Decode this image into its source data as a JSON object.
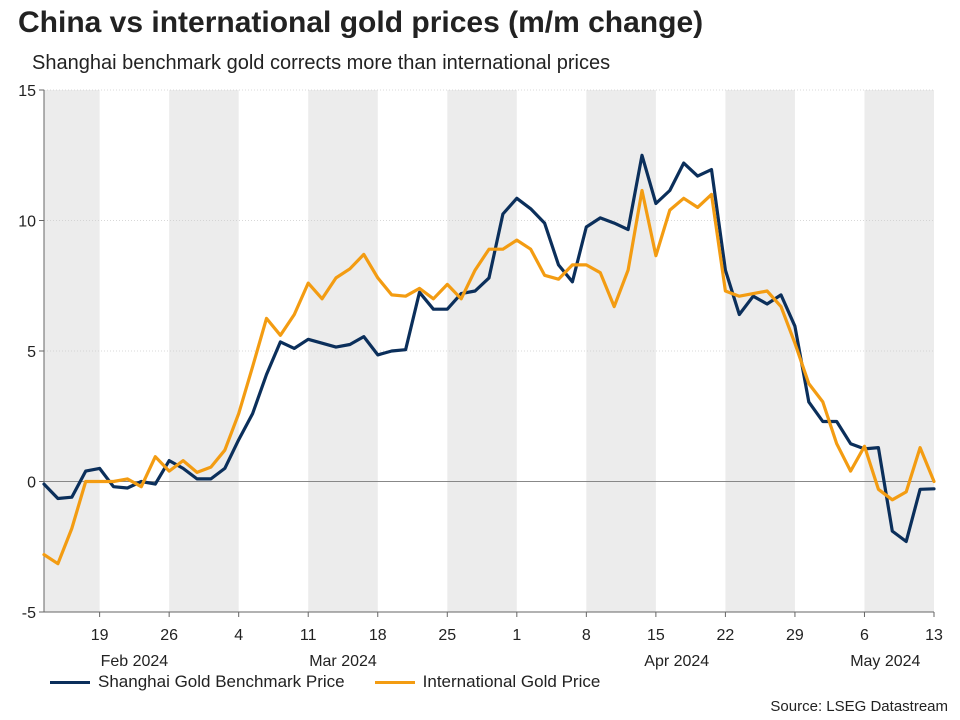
{
  "chart_data": {
    "type": "line",
    "title": "China vs international gold prices (m/m change)",
    "subtitle": "Shanghai benchmark gold corrects more than international prices",
    "source": "Source: LSEG Datastream",
    "ylim": [
      -5,
      15
    ],
    "yticks": [
      -5,
      0,
      5,
      10,
      15
    ],
    "x_range": [
      0,
      64
    ],
    "xtick_labels": [
      {
        "x": 4,
        "label": "19"
      },
      {
        "x": 9,
        "label": "26"
      },
      {
        "x": 14,
        "label": "4"
      },
      {
        "x": 19,
        "label": "11"
      },
      {
        "x": 24,
        "label": "18"
      },
      {
        "x": 29,
        "label": "25"
      },
      {
        "x": 34,
        "label": "1"
      },
      {
        "x": 39,
        "label": "8"
      },
      {
        "x": 44,
        "label": "15"
      },
      {
        "x": 49,
        "label": "22"
      },
      {
        "x": 54,
        "label": "29"
      },
      {
        "x": 59,
        "label": "6"
      },
      {
        "x": 64,
        "label": "13"
      }
    ],
    "month_labels": [
      {
        "x": 6.5,
        "label": "Feb 2024"
      },
      {
        "x": 21.5,
        "label": "Mar 2024"
      },
      {
        "x": 45.5,
        "label": "Apr 2024"
      },
      {
        "x": 60.5,
        "label": "May 2024"
      }
    ],
    "shaded_bands": [
      [
        0,
        4
      ],
      [
        9,
        14
      ],
      [
        19,
        24
      ],
      [
        29,
        34
      ],
      [
        39,
        44
      ],
      [
        49,
        54
      ],
      [
        59,
        64
      ]
    ],
    "colors": {
      "shanghai": "#0b2f5b",
      "international": "#f39c12",
      "band": "#ececec",
      "zero": "#888888",
      "grid": "#cccccc"
    },
    "series": [
      {
        "name": "Shanghai Gold Benchmark Price",
        "color": "#0b2f5b",
        "x": [
          0,
          1,
          2,
          3,
          4,
          5,
          6,
          7,
          8,
          9,
          10,
          11,
          12,
          13,
          14,
          15,
          16,
          17,
          18,
          19,
          20,
          21,
          22,
          23,
          24,
          25,
          26,
          27,
          28,
          29,
          30,
          31,
          32,
          33,
          34,
          35,
          36,
          37,
          38,
          39,
          40,
          41,
          42,
          43,
          44,
          45,
          46,
          47,
          48,
          49,
          50,
          51,
          52,
          53,
          54,
          55,
          56,
          57,
          58,
          59,
          60,
          61,
          62,
          63,
          64
        ],
        "values": [
          -0.1,
          -0.65,
          -0.6,
          0.4,
          0.5,
          -0.2,
          -0.25,
          0.0,
          -0.1,
          0.8,
          0.5,
          0.1,
          0.1,
          0.5,
          1.6,
          2.6,
          4.1,
          5.35,
          5.1,
          5.45,
          5.3,
          5.15,
          5.25,
          5.55,
          4.85,
          5.0,
          5.05,
          7.25,
          6.6,
          6.6,
          7.2,
          7.3,
          7.8,
          10.25,
          10.85,
          10.45,
          9.9,
          8.3,
          7.65,
          9.75,
          10.1,
          9.9,
          9.65,
          12.5,
          10.65,
          11.15,
          12.2,
          11.7,
          11.95,
          8.1,
          6.4,
          7.1,
          6.8,
          7.15,
          5.95,
          3.05,
          2.3,
          2.3,
          1.45,
          1.25,
          1.3,
          -1.9,
          -2.3,
          -0.3,
          -0.28
        ]
      },
      {
        "name": "International Gold Price",
        "color": "#f39c12",
        "x": [
          0,
          1,
          2,
          3,
          4,
          5,
          6,
          7,
          8,
          9,
          10,
          11,
          12,
          13,
          14,
          15,
          16,
          17,
          18,
          19,
          20,
          21,
          22,
          23,
          24,
          25,
          26,
          27,
          28,
          29,
          30,
          31,
          32,
          33,
          34,
          35,
          36,
          37,
          38,
          39,
          40,
          41,
          42,
          43,
          44,
          45,
          46,
          47,
          48,
          49,
          50,
          51,
          52,
          53,
          54,
          55,
          56,
          57,
          58,
          59,
          60,
          61,
          62,
          63,
          64
        ],
        "values": [
          -2.8,
          -3.15,
          -1.8,
          0.0,
          0.0,
          0.0,
          0.1,
          -0.2,
          0.95,
          0.4,
          0.8,
          0.35,
          0.55,
          1.2,
          2.6,
          4.4,
          6.25,
          5.6,
          6.4,
          7.6,
          7.0,
          7.8,
          8.15,
          8.7,
          7.8,
          7.15,
          7.1,
          7.4,
          7.0,
          7.55,
          7.0,
          8.1,
          8.9,
          8.9,
          9.25,
          8.9,
          7.9,
          7.75,
          8.3,
          8.3,
          8.0,
          6.7,
          8.1,
          11.15,
          8.65,
          10.4,
          10.85,
          10.5,
          11.0,
          7.3,
          7.1,
          7.2,
          7.3,
          6.7,
          5.3,
          3.75,
          3.05,
          1.45,
          0.4,
          1.35,
          -0.3,
          -0.7,
          -0.4,
          1.3,
          0.0
        ]
      }
    ]
  }
}
